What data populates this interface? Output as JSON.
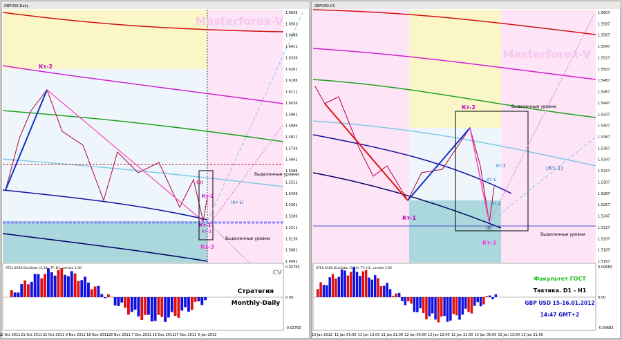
{
  "panels": [
    {
      "title": "GBPUSD,Daily",
      "watermark": "Masterforex-V",
      "price_axis": [
        "1.6836",
        "1.6561",
        "1.6486",
        "1.6411",
        "1.6336",
        "1.6261",
        "1.6186",
        "1.6111",
        "1.6036",
        "1.5961",
        "1.5886",
        "1.5811",
        "1.5736",
        "1.5661",
        "1.5586",
        "1.5511",
        "1.5436",
        "1.5361",
        "1.5286",
        "1.5211",
        "1.5136",
        "1.5061",
        "1.4991"
      ],
      "dates": [
        "12 Oct 2011",
        "21 Oct 2011",
        "31 Oct 2011",
        "9 Nov 2011",
        "18 Nov 2011",
        "28 Nov 2011",
        "7 Dec 2011",
        "16 Dec 2011",
        "27 Dec 2011",
        "6 Jan 2012"
      ],
      "labels": [
        "Кт-2",
        "(0)",
        "Кт-2",
        "(Кт-1)",
        "Кт-1",
        "Кт-3",
        "Кт-3"
      ],
      "levels_label": [
        "Выделенные уровни",
        "Выделенные уровни"
      ],
      "oscillator": {
        "title": "ATE1.SAKS.Oscillator (5,34). TF: D1, version 1.00",
        "axis": [
          "0.02763",
          "0.00",
          "-0.02763"
        ]
      },
      "note": [
        "Стратегия",
        "Monthly-Daily"
      ],
      "corner": "CV"
    },
    {
      "title": "GBPUSD,H1",
      "watermark": "Masterforex-V",
      "price_axis": [
        "1.5607",
        "1.5587",
        "1.5567",
        "1.5547",
        "1.5527",
        "1.5507",
        "1.5487",
        "1.5467",
        "1.5447",
        "1.5427",
        "1.5407",
        "1.5387",
        "1.5367",
        "1.5347",
        "1.5327",
        "1.5307",
        "1.5287",
        "1.5267",
        "1.5247",
        "1.5227",
        "1.5207",
        "1.5187",
        "1.5167"
      ],
      "dates": [
        "10 Jan 2012",
        "11 Jan 05:00",
        "11 Jan 13:00",
        "11 Jan 21:00",
        "12 Jan 05:00",
        "12 Jan 13:00",
        "12 Jan 21:00",
        "13 Jan 05:00",
        "13 Jan 13:00",
        "13 Jan 21:00"
      ],
      "labels": [
        "Кт-2",
        "Кт-1",
        "Кт-3",
        "(Кт-1)",
        "Кт-1",
        "Кт-2",
        "(0)",
        "Кт-3"
      ],
      "levels_label": [
        "Выделенные уровни",
        "Выделенные уровни"
      ],
      "oscillator": {
        "title": "ATE1.SAKS.Oscillator (5,34). TF: H1, version 1.00",
        "axis": [
          "0.00683",
          "0.00",
          "-0.00683"
        ]
      },
      "note": [
        "Факультет ГОСТ",
        "Тактика. D1 - H1",
        "GBP USD 15-16.01.2012",
        "14:47 GMT+2"
      ]
    }
  ]
}
